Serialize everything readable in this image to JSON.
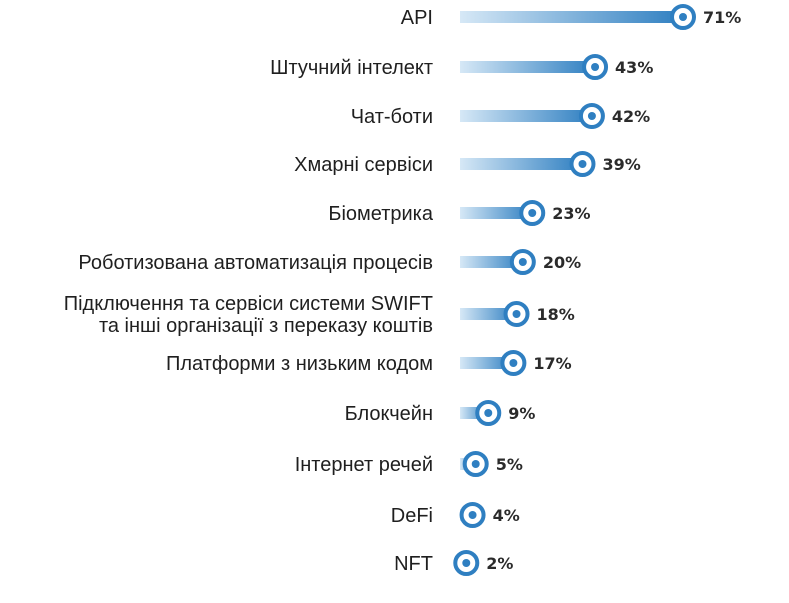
{
  "chart_data": {
    "type": "bar",
    "orientation": "horizontal",
    "title": "",
    "xlabel": "",
    "ylabel": "",
    "xlim": [
      0,
      71
    ],
    "grid": false,
    "categories": [
      [
        "API"
      ],
      [
        "Штучний інтелект"
      ],
      [
        "Чат-боти"
      ],
      [
        "Хмарні сервіси"
      ],
      [
        "Біометрика"
      ],
      [
        "Роботизована автоматизація процесів"
      ],
      [
        "Підключення та сервіси системи SWIFT",
        "та інші організації з переказу коштів"
      ],
      [
        "Платформи з низьким кодом"
      ],
      [
        "Блокчейн"
      ],
      [
        "Інтернет речей"
      ],
      [
        "DeFi"
      ],
      [
        "NFT"
      ]
    ],
    "values": [
      71,
      43,
      42,
      39,
      23,
      20,
      18,
      17,
      9,
      5,
      4,
      2
    ],
    "value_labels": [
      "71%",
      "43%",
      "42%",
      "39%",
      "23%",
      "20%",
      "18%",
      "17%",
      "9%",
      "5%",
      "4%",
      "2%"
    ],
    "colors": {
      "bar_start": "#d6e8f6",
      "bar_end": "#2f7fc1",
      "marker": "#2f7fc1",
      "marker_fill": "#ffffff"
    }
  }
}
